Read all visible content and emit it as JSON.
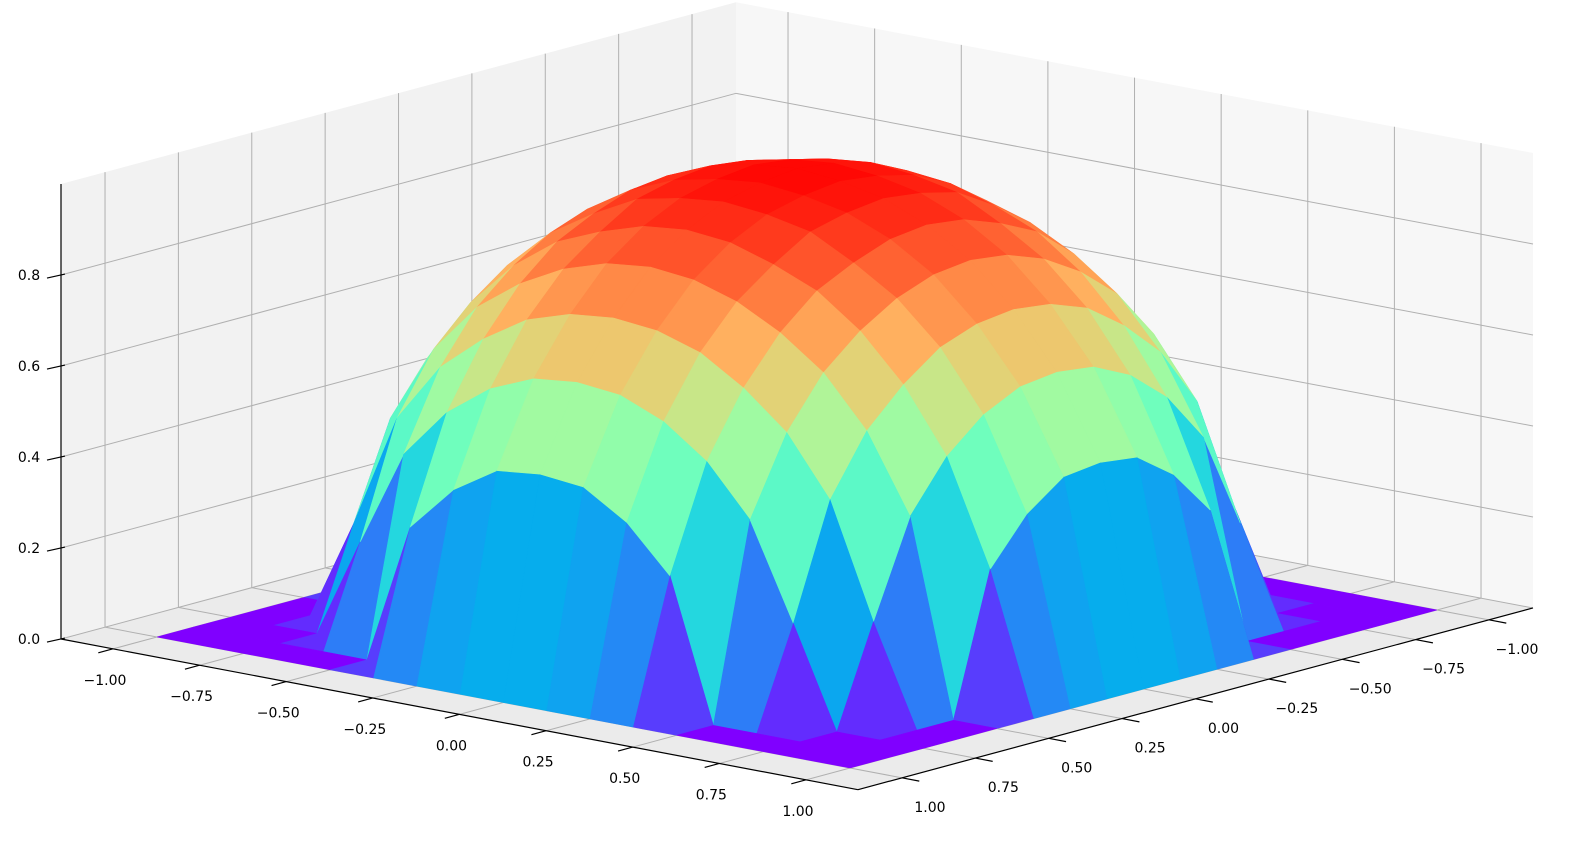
{
  "chart_data": {
    "type": "surface",
    "colormap": "rainbow",
    "x": [
      -1,
      -0.875,
      -0.75,
      -0.625,
      -0.5,
      -0.375,
      -0.25,
      -0.125,
      0,
      0.125,
      0.25,
      0.375,
      0.5,
      0.625,
      0.75,
      0.875,
      1
    ],
    "y": [
      -1,
      -0.875,
      -0.75,
      -0.625,
      -0.5,
      -0.375,
      -0.25,
      -0.125,
      0,
      0.125,
      0.25,
      0.375,
      0.5,
      0.625,
      0.75,
      0.875,
      1
    ],
    "z": [
      [
        0,
        0,
        0,
        0,
        0,
        0,
        0,
        0,
        0,
        0,
        0,
        0,
        0,
        0,
        0,
        0,
        0
      ],
      [
        0,
        0,
        0,
        0,
        0,
        0.31,
        0.41,
        0.47,
        0.48,
        0.47,
        0.41,
        0.31,
        0,
        0,
        0,
        0,
        0
      ],
      [
        0,
        0,
        0,
        0.22,
        0.43,
        0.54,
        0.61,
        0.65,
        0.66,
        0.65,
        0.61,
        0.54,
        0.43,
        0.22,
        0,
        0,
        0
      ],
      [
        0,
        0,
        0.22,
        0.47,
        0.6,
        0.68,
        0.74,
        0.77,
        0.78,
        0.77,
        0.74,
        0.68,
        0.6,
        0.47,
        0.22,
        0,
        0
      ],
      [
        0,
        0,
        0.43,
        0.6,
        0.71,
        0.78,
        0.83,
        0.86,
        0.87,
        0.86,
        0.83,
        0.78,
        0.71,
        0.6,
        0.43,
        0,
        0
      ],
      [
        0,
        0.31,
        0.54,
        0.68,
        0.78,
        0.85,
        0.89,
        0.92,
        0.93,
        0.92,
        0.89,
        0.85,
        0.78,
        0.68,
        0.54,
        0.31,
        0
      ],
      [
        0,
        0.41,
        0.61,
        0.74,
        0.83,
        0.89,
        0.94,
        0.96,
        0.97,
        0.96,
        0.94,
        0.89,
        0.83,
        0.74,
        0.61,
        0.41,
        0
      ],
      [
        0,
        0.47,
        0.65,
        0.77,
        0.86,
        0.92,
        0.96,
        0.98,
        0.99,
        0.98,
        0.96,
        0.92,
        0.86,
        0.77,
        0.65,
        0.47,
        0
      ],
      [
        0,
        0.48,
        0.66,
        0.78,
        0.87,
        0.93,
        0.97,
        0.99,
        1,
        0.99,
        0.97,
        0.93,
        0.87,
        0.78,
        0.66,
        0.48,
        0
      ],
      [
        0,
        0.47,
        0.65,
        0.77,
        0.86,
        0.92,
        0.96,
        0.98,
        0.99,
        0.98,
        0.96,
        0.92,
        0.86,
        0.77,
        0.65,
        0.47,
        0
      ],
      [
        0,
        0.41,
        0.61,
        0.74,
        0.83,
        0.89,
        0.94,
        0.96,
        0.97,
        0.96,
        0.94,
        0.89,
        0.83,
        0.74,
        0.61,
        0.41,
        0
      ],
      [
        0,
        0.31,
        0.54,
        0.68,
        0.78,
        0.85,
        0.89,
        0.92,
        0.93,
        0.92,
        0.89,
        0.85,
        0.78,
        0.68,
        0.54,
        0.31,
        0
      ],
      [
        0,
        0,
        0.43,
        0.6,
        0.71,
        0.78,
        0.83,
        0.86,
        0.87,
        0.86,
        0.83,
        0.78,
        0.71,
        0.6,
        0.43,
        0,
        0
      ],
      [
        0,
        0,
        0.22,
        0.47,
        0.6,
        0.68,
        0.74,
        0.77,
        0.78,
        0.77,
        0.74,
        0.68,
        0.6,
        0.47,
        0.22,
        0,
        0
      ],
      [
        0,
        0,
        0,
        0.22,
        0.43,
        0.54,
        0.61,
        0.65,
        0.66,
        0.65,
        0.61,
        0.54,
        0.43,
        0.22,
        0,
        0,
        0
      ],
      [
        0,
        0,
        0,
        0,
        0,
        0.31,
        0.41,
        0.47,
        0.48,
        0.47,
        0.41,
        0.31,
        0,
        0,
        0,
        0,
        0
      ],
      [
        0,
        0,
        0,
        0,
        0,
        0,
        0,
        0,
        0,
        0,
        0,
        0,
        0,
        0,
        0,
        0,
        0
      ]
    ],
    "xlim": [
      -1,
      1
    ],
    "ylim": [
      -1,
      1
    ],
    "zlim": [
      0,
      1
    ],
    "xticks": [
      {
        "value": -1,
        "label": "−1.00"
      },
      {
        "value": -0.75,
        "label": "−0.75"
      },
      {
        "value": -0.5,
        "label": "−0.50"
      },
      {
        "value": -0.25,
        "label": "−0.25"
      },
      {
        "value": 0,
        "label": "0.00"
      },
      0.25,
      {
        "value": 0.5,
        "label": "0.50"
      },
      0.75,
      {
        "value": 1,
        "label": "1.00"
      }
    ],
    "yticks": [
      {
        "value": -1,
        "label": "−1.00"
      },
      {
        "value": -0.75,
        "label": "−0.75"
      },
      {
        "value": -0.5,
        "label": "−0.50"
      },
      {
        "value": -0.25,
        "label": "−0.25"
      },
      {
        "value": 0,
        "label": "0.00"
      },
      0.25,
      {
        "value": 0.5,
        "label": "0.50"
      },
      0.75,
      {
        "value": 1,
        "label": "1.00"
      }
    ],
    "zticks": [
      {
        "value": 0,
        "label": "0.0"
      },
      0.2,
      0.4,
      0.6,
      0.8
    ],
    "grid": true
  }
}
